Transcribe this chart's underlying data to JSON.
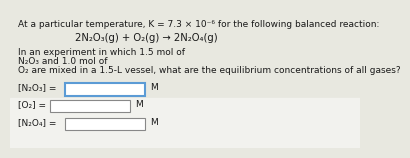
{
  "bg_color": "#e8e8e0",
  "bottom_bg": "#f0f0f0",
  "title_line": "At a particular temperature, K = 7.3 × 10⁻⁶ for the following balanced reaction:",
  "reaction": "2N₂O₃(g) + O₂(g) → 2N₂O₄(g)",
  "body_line1": "In an experiment in which 1.5 mol of",
  "body_line2": "N₂O₃ and 1.0 mol of",
  "body_line3": "O₂ are mixed in a 1.5-L vessel, what are the equilibrium concentrations of all gases?",
  "label1": "[N₂O₃] =",
  "label2": "[O₂] =",
  "label3": "[N₂O₄] =",
  "unit": "M",
  "box1_color": "#ffffff",
  "box1_border": "#5b9bd5",
  "box_color": "#ffffff",
  "box_border": "#888888",
  "text_color": "#1a1a1a",
  "font_size": 6.5,
  "reaction_font_size": 7.2,
  "title_font_size": 6.5
}
